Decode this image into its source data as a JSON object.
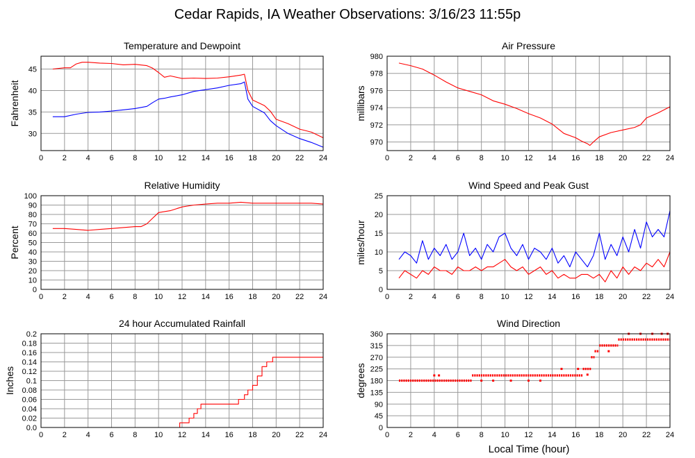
{
  "page": {
    "title": "Cedar Rapids, IA Weather Observations: 3/16/23 11:55p",
    "x_axis_label": "Local Time (hour)"
  },
  "colors": {
    "red": "#ff0000",
    "blue": "#0000ff",
    "grid": "#999999",
    "frame": "#000000"
  },
  "chart_data": [
    {
      "id": "temp",
      "type": "line",
      "title": "Temperature and Dewpoint",
      "xlabel": "",
      "ylabel": "Fahrenheit",
      "xlim": [
        0,
        24
      ],
      "ylim": [
        26,
        48
      ],
      "xticks": [
        0,
        2,
        4,
        6,
        8,
        10,
        12,
        14,
        16,
        18,
        20,
        22,
        24
      ],
      "yticks": [
        30,
        35,
        40,
        45
      ],
      "grid": true,
      "series": [
        {
          "color": "#ff0000",
          "x": [
            1.0,
            2.0,
            2.5,
            3.0,
            3.5,
            4.0,
            5.0,
            6.0,
            7.0,
            8.0,
            9.0,
            9.5,
            10.0,
            10.5,
            11.0,
            12.0,
            13.0,
            14.0,
            15.0,
            16.0,
            17.0,
            17.3,
            17.6,
            18.0,
            19.0,
            19.5,
            20.0,
            21.0,
            22.0,
            23.0,
            24.0
          ],
          "y": [
            45.0,
            45.3,
            45.3,
            46.2,
            46.6,
            46.6,
            46.4,
            46.3,
            46.0,
            46.1,
            45.8,
            45.2,
            44.2,
            43.1,
            43.4,
            42.8,
            42.9,
            42.8,
            42.9,
            43.2,
            43.6,
            43.8,
            40.0,
            37.8,
            36.5,
            35.2,
            33.3,
            32.3,
            31.0,
            30.3,
            29.0
          ]
        },
        {
          "color": "#0000ff",
          "x": [
            1.0,
            2.0,
            3.0,
            4.0,
            5.0,
            6.0,
            7.0,
            8.0,
            9.0,
            9.5,
            10.0,
            10.5,
            11.0,
            12.0,
            13.0,
            14.0,
            15.0,
            16.0,
            17.0,
            17.3,
            17.6,
            18.0,
            19.0,
            19.5,
            20.0,
            21.0,
            22.0,
            23.0,
            24.0
          ],
          "y": [
            33.9,
            33.9,
            34.5,
            34.9,
            35.0,
            35.2,
            35.5,
            35.8,
            36.3,
            37.2,
            38.0,
            38.2,
            38.5,
            39.0,
            39.8,
            40.2,
            40.6,
            41.2,
            41.6,
            42.0,
            38.0,
            36.3,
            34.8,
            33.0,
            31.8,
            30.0,
            28.8,
            27.9,
            26.8
          ]
        }
      ]
    },
    {
      "id": "pressure",
      "type": "line",
      "title": "Air Pressure",
      "xlabel": "",
      "ylabel": "millibars",
      "xlim": [
        0,
        24
      ],
      "ylim": [
        969,
        980
      ],
      "xticks": [
        0,
        2,
        4,
        6,
        8,
        10,
        12,
        14,
        16,
        18,
        20,
        22,
        24
      ],
      "yticks": [
        970,
        972,
        974,
        976,
        978,
        980
      ],
      "grid": true,
      "series": [
        {
          "color": "#ff0000",
          "x": [
            1.0,
            2.0,
            3.0,
            4.0,
            5.0,
            6.0,
            7.0,
            8.0,
            9.0,
            10.0,
            11.0,
            12.0,
            13.0,
            14.0,
            15.0,
            16.0,
            16.5,
            17.0,
            17.2,
            17.5,
            18.0,
            19.0,
            20.0,
            21.0,
            21.5,
            22.0,
            23.0,
            24.0
          ],
          "y": [
            979.2,
            978.9,
            978.5,
            977.8,
            977.0,
            976.3,
            975.9,
            975.5,
            974.8,
            974.4,
            973.9,
            973.3,
            972.8,
            972.1,
            971.0,
            970.5,
            970.1,
            969.8,
            969.6,
            970.0,
            970.6,
            971.1,
            971.4,
            971.7,
            972.0,
            972.8,
            973.4,
            974.1
          ]
        }
      ]
    },
    {
      "id": "humidity",
      "type": "line",
      "title": "Relative Humidity",
      "xlabel": "",
      "ylabel": "Percent",
      "xlim": [
        0,
        24
      ],
      "ylim": [
        0,
        100
      ],
      "xticks": [
        0,
        2,
        4,
        6,
        8,
        10,
        12,
        14,
        16,
        18,
        20,
        22,
        24
      ],
      "yticks": [
        0,
        10,
        20,
        30,
        40,
        50,
        60,
        70,
        80,
        90,
        100
      ],
      "grid": true,
      "series": [
        {
          "color": "#ff0000",
          "x": [
            1.0,
            2.0,
            3.0,
            4.0,
            5.0,
            6.0,
            7.0,
            8.0,
            8.5,
            9.0,
            9.5,
            10.0,
            10.5,
            11.0,
            12.0,
            13.0,
            14.0,
            15.0,
            16.0,
            17.0,
            18.0,
            19.0,
            20.0,
            21.0,
            22.0,
            23.0,
            24.0
          ],
          "y": [
            65,
            65,
            64,
            63,
            64,
            65,
            66,
            67,
            67,
            70,
            76,
            82,
            83,
            84,
            88,
            90,
            91,
            92,
            92,
            93,
            92,
            92,
            92,
            92,
            92,
            92,
            91
          ]
        }
      ]
    },
    {
      "id": "wind",
      "type": "line",
      "title": "Wind Speed and Peak Gust",
      "xlabel": "",
      "ylabel": "miles/hour",
      "xlim": [
        0,
        24
      ],
      "ylim": [
        0,
        25
      ],
      "xticks": [
        0,
        2,
        4,
        6,
        8,
        10,
        12,
        14,
        16,
        18,
        20,
        22,
        24
      ],
      "yticks": [
        0,
        5,
        10,
        15,
        20,
        25
      ],
      "grid": true,
      "series": [
        {
          "color": "#0000ff",
          "x": [
            1.0,
            1.5,
            2.0,
            2.5,
            3.0,
            3.5,
            4.0,
            4.5,
            5.0,
            5.5,
            6.0,
            6.5,
            7.0,
            7.5,
            8.0,
            8.5,
            9.0,
            9.5,
            10.0,
            10.5,
            11.0,
            11.5,
            12.0,
            12.5,
            13.0,
            13.5,
            14.0,
            14.5,
            15.0,
            15.5,
            16.0,
            16.5,
            17.0,
            17.5,
            18.0,
            18.5,
            19.0,
            19.5,
            20.0,
            20.5,
            21.0,
            21.5,
            22.0,
            22.5,
            23.0,
            23.5,
            24.0
          ],
          "y": [
            8,
            10,
            9,
            7,
            13,
            8,
            11,
            9,
            12,
            8,
            10,
            15,
            9,
            11,
            8,
            12,
            10,
            14,
            15,
            11,
            9,
            12,
            8,
            11,
            10,
            8,
            11,
            7,
            9,
            6,
            10,
            8,
            6,
            9,
            15,
            8,
            12,
            9,
            14,
            10,
            16,
            11,
            18,
            14,
            16,
            14,
            21
          ]
        },
        {
          "color": "#ff0000",
          "x": [
            1.0,
            1.5,
            2.0,
            2.5,
            3.0,
            3.5,
            4.0,
            4.5,
            5.0,
            5.5,
            6.0,
            6.5,
            7.0,
            7.5,
            8.0,
            8.5,
            9.0,
            9.5,
            10.0,
            10.5,
            11.0,
            11.5,
            12.0,
            12.5,
            13.0,
            13.5,
            14.0,
            14.5,
            15.0,
            15.5,
            16.0,
            16.5,
            17.0,
            17.5,
            18.0,
            18.5,
            19.0,
            19.5,
            20.0,
            20.5,
            21.0,
            21.5,
            22.0,
            22.5,
            23.0,
            23.5,
            24.0
          ],
          "y": [
            3,
            5,
            4,
            3,
            5,
            4,
            6,
            5,
            5,
            4,
            6,
            5,
            5,
            6,
            5,
            6,
            6,
            7,
            8,
            6,
            5,
            6,
            4,
            5,
            6,
            4,
            5,
            3,
            4,
            3,
            3,
            4,
            4,
            3,
            4,
            2,
            5,
            3,
            6,
            4,
            6,
            5,
            7,
            6,
            8,
            6,
            10
          ]
        }
      ]
    },
    {
      "id": "rain",
      "type": "line",
      "title": "24 hour Accumulated Rainfall",
      "xlabel": "",
      "ylabel": "Inches",
      "xlim": [
        0,
        24
      ],
      "ylim": [
        0,
        0.2
      ],
      "xticks": [
        0,
        2,
        4,
        6,
        8,
        10,
        12,
        14,
        16,
        18,
        20,
        22,
        24
      ],
      "yticks": [
        0.0,
        0.02,
        0.04,
        0.06,
        0.08,
        0.1,
        0.12,
        0.14,
        0.16,
        0.18,
        0.2
      ],
      "ytick_labels": [
        "0.0",
        "0.02",
        "0.04",
        "0.06",
        "0.08",
        "0.1",
        "0.12",
        "0.14",
        "0.16",
        "0.18",
        "0.2"
      ],
      "grid": true,
      "step": true,
      "series": [
        {
          "color": "#ff0000",
          "x": [
            1.0,
            11.8,
            12.6,
            13.0,
            13.3,
            13.6,
            16.8,
            17.3,
            17.6,
            18.0,
            18.4,
            18.8,
            19.0,
            19.2,
            19.4,
            19.7,
            24.0
          ],
          "y": [
            0.0,
            0.01,
            0.02,
            0.03,
            0.04,
            0.05,
            0.06,
            0.07,
            0.08,
            0.09,
            0.11,
            0.13,
            0.13,
            0.14,
            0.14,
            0.15,
            0.15
          ]
        }
      ]
    },
    {
      "id": "winddir",
      "type": "scatter",
      "title": "Wind Direction",
      "xlabel": "Local Time (hour)",
      "ylabel": "degrees",
      "xlim": [
        0,
        24
      ],
      "ylim": [
        0,
        360
      ],
      "xticks": [
        0,
        2,
        4,
        6,
        8,
        10,
        12,
        14,
        16,
        18,
        20,
        22,
        24
      ],
      "yticks": [
        0,
        45,
        90,
        135,
        180,
        225,
        270,
        315,
        360
      ],
      "grid": true,
      "series": [
        {
          "color": "#ff0000",
          "segments": [
            {
              "x_start": 1.0,
              "x_end": 7.2,
              "y": 180
            },
            {
              "x_start": 7.2,
              "x_end": 16.6,
              "y": 200
            },
            {
              "x_start": 16.6,
              "x_end": 17.3,
              "y": 225
            },
            {
              "x_start": 17.3,
              "x_end": 17.6,
              "y": 270
            },
            {
              "x_start": 17.6,
              "x_end": 18.0,
              "y": 293
            },
            {
              "x_start": 18.0,
              "x_end": 19.6,
              "y": 315
            },
            {
              "x_start": 19.6,
              "x_end": 24.0,
              "y": 338
            }
          ],
          "points": [
            {
              "x": 4.0,
              "y": 200
            },
            {
              "x": 4.4,
              "y": 200
            },
            {
              "x": 8.0,
              "y": 180
            },
            {
              "x": 9.0,
              "y": 180
            },
            {
              "x": 10.5,
              "y": 180
            },
            {
              "x": 12.0,
              "y": 180
            },
            {
              "x": 13.0,
              "y": 180
            },
            {
              "x": 14.8,
              "y": 225
            },
            {
              "x": 16.2,
              "y": 225
            },
            {
              "x": 17.0,
              "y": 203
            },
            {
              "x": 18.8,
              "y": 293
            },
            {
              "x": 20.5,
              "y": 360
            },
            {
              "x": 21.5,
              "y": 360
            },
            {
              "x": 22.5,
              "y": 360
            },
            {
              "x": 23.3,
              "y": 360
            },
            {
              "x": 23.8,
              "y": 360
            }
          ]
        }
      ]
    }
  ]
}
